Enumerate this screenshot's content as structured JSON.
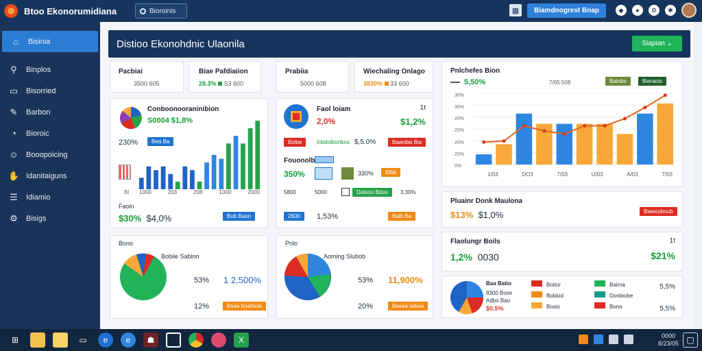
{
  "topbar": {
    "title": "Btoo Ekonorumidiana",
    "search": "Bioroinis",
    "action_button": "Biamdnogrest Bnap"
  },
  "sidebar": {
    "items": [
      {
        "label": "Bisinia",
        "icon": "home-icon"
      },
      {
        "label": "Binplos",
        "icon": "search-icon"
      },
      {
        "label": "Bisorried",
        "icon": "monitor-icon"
      },
      {
        "label": "Barbon",
        "icon": "pen-icon"
      },
      {
        "label": "Bioroic",
        "icon": "gauge-icon"
      },
      {
        "label": "Booopoicing",
        "icon": "people-icon"
      },
      {
        "label": "Idanitaiguns",
        "icon": "handshake-icon"
      },
      {
        "label": "Idiamio",
        "icon": "list-icon"
      },
      {
        "label": "Bisigs",
        "icon": "gear-icon"
      }
    ]
  },
  "main": {
    "title": "Distioo Ekonohdnic Ulaonila",
    "head_button": "Siapian"
  },
  "kpi": [
    {
      "label": "Pacbiai",
      "value": "3500 605"
    },
    {
      "label": "Biae Pafdiaiion",
      "v1": "28.3%",
      "v2": "S3 600"
    },
    {
      "label": "Prabiia",
      "value": "5000 608"
    },
    {
      "label": "Wiechaling Onlago",
      "v1": "3830%",
      "v2": "33 600"
    }
  ],
  "card_a": {
    "title": "Conboonooraninibion",
    "sub": "S0004 $1,8%",
    "left_val": "230%",
    "pill": "Bea Ba",
    "legend_x": "Bl",
    "ticks": [
      "1000",
      "203",
      "208",
      "1000",
      "2000"
    ],
    "bottom_label": "Faoin",
    "v1": "$30%",
    "v2": "$4,0%",
    "btn": "Bub Baon"
  },
  "card_b": {
    "title": "Faol loiam",
    "corner": "1t",
    "v1": "2,0%",
    "v2": "$1,2%",
    "pill_left": "Bolbe",
    "mid_label": "Inbdolboribos",
    "mid_val": "$,5.0%",
    "pill_right": "Baaniba Bia",
    "row_title": "Fouonolbolon",
    "r1": "350%",
    "r1b": "330%",
    "r2": "5800",
    "r2b": "5000",
    "r2c": "3,30%",
    "pill_a": "Blbb",
    "pill_b": "Daboio Bdos",
    "pill_c": "2600",
    "b_v": "1,53%",
    "pill_d": "Balb Ba"
  },
  "card_c": {
    "title": "Pnlchefes Bion",
    "v1": "5,50%",
    "v2": "7/05 508",
    "btn_a": "Bainbo",
    "btn_b": "Bieraois",
    "y_ticks": [
      "30%",
      "30%",
      "20%",
      "20%",
      "20%",
      "20%",
      "0%"
    ],
    "x_ticks": [
      "1/03",
      "DO3",
      "7/03",
      "U/03",
      "A/03",
      "7/03"
    ]
  },
  "card_d": {
    "title": "Pluainr Donk Maulona",
    "v1": "$13%",
    "v2": "$1,0%",
    "btn": "Biaeouboub"
  },
  "card_e": {
    "title": "Bono",
    "pie_label": "Bobiie Sabinn",
    "v1": "53%",
    "v2": "1 2,500%",
    "v3": "12%",
    "btn": "Bsaa bnalbiob"
  },
  "card_f": {
    "title": "Pnlo",
    "pie_label": "Aoming Slubob",
    "v1": "53%",
    "v2": "11,900%",
    "v3": "20%",
    "btn": "Basaa lalboa"
  },
  "card_g": {
    "title": "Flaolungr Boils",
    "corner": "1t",
    "v1": "1,2%",
    "v2": "0030",
    "v3": "$21%"
  },
  "card_h": {
    "title": "Baa Batio",
    "items": [
      "8300 Bose",
      "Adbo Bao",
      "$0.5%"
    ],
    "legend": [
      "Boitor",
      "Bobiod",
      "Bosio",
      "Baima",
      "Donbiobe",
      "Bono"
    ],
    "r1": "5,5%",
    "r2": "5,5%"
  },
  "taskbar": {
    "time": "0000",
    "date": "8/23/05"
  },
  "chart_main": {
    "type": "bar",
    "values": [
      3,
      6,
      5,
      6,
      4,
      2,
      6,
      5,
      2,
      7,
      9,
      8,
      12,
      14,
      12,
      16,
      18
    ],
    "colors": [
      "#1f63c4",
      "#1f63c4",
      "#1f63c4",
      "#1f63c4",
      "#1f63c4",
      "#26a24a",
      "#1f63c4",
      "#1f63c4",
      "#26a24a",
      "#2f86e0",
      "#2f86e0",
      "#2f86e0",
      "#26a24a",
      "#2f86e0",
      "#26a24a",
      "#26a24a",
      "#26a24a"
    ]
  },
  "chart_combo": {
    "bars": [
      [
        1,
        "#2f86e0"
      ],
      [
        2,
        "#f7a838"
      ],
      [
        5,
        "#2f86e0"
      ],
      [
        4,
        "#f7a838"
      ],
      [
        4,
        "#2f86e0"
      ],
      [
        4,
        "#f7a838"
      ],
      [
        4,
        "#f7a838"
      ],
      [
        3,
        "#f7a838"
      ],
      [
        5,
        "#2f86e0"
      ],
      [
        6,
        "#f7a838"
      ]
    ],
    "line": [
      2.2,
      2.3,
      3.8,
      3.3,
      3.0,
      3.8,
      3.8,
      4.5,
      5.6,
      6.8
    ]
  }
}
